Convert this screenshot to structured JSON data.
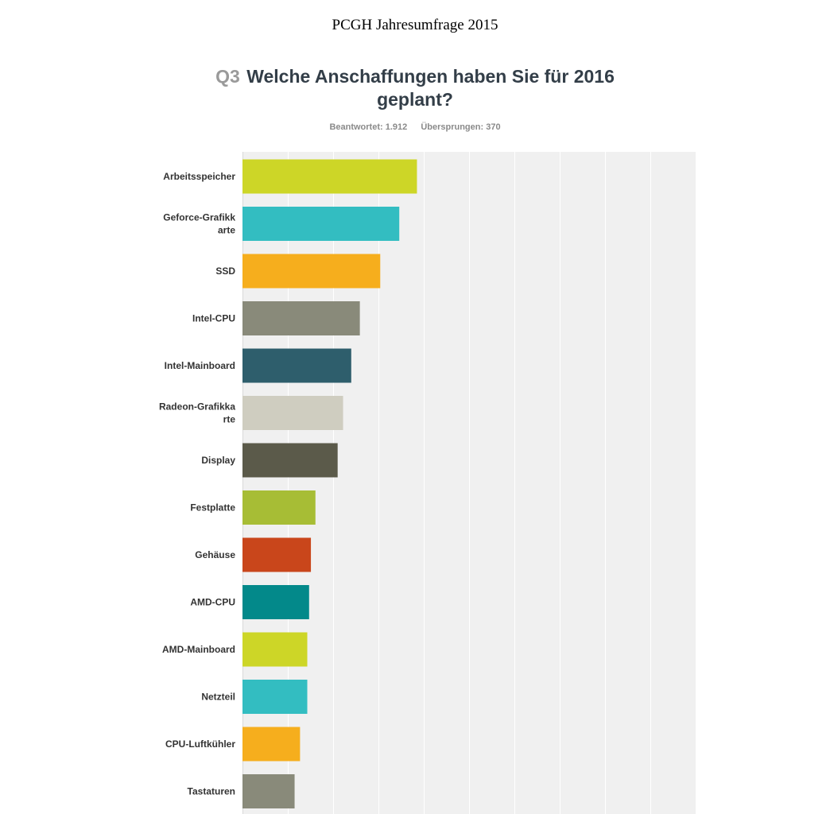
{
  "header": {
    "doc_title": "PCGH Jahresumfrage 2015",
    "question_number": "Q3",
    "question_text": "Welche Anschaffungen haben Sie für 2016 geplant?",
    "answered": "Beantwortet: 1.912",
    "skipped": "Übersprungen: 370"
  },
  "chart_data": {
    "type": "bar",
    "orientation": "horizontal",
    "title": "Welche Anschaffungen haben Sie für 2016 geplant?",
    "xlabel": "",
    "ylabel": "",
    "xlim": [
      0,
      100
    ],
    "grid": true,
    "categories": [
      [
        "Arbeitsspeicher"
      ],
      [
        "Geforce-Grafikk",
        "arte"
      ],
      [
        "SSD"
      ],
      [
        "Intel-CPU"
      ],
      [
        "Intel-Mainboard"
      ],
      [
        "Radeon-Grafikka",
        "rte"
      ],
      [
        "Display"
      ],
      [
        "Festplatte"
      ],
      [
        "Gehäuse"
      ],
      [
        "AMD-CPU"
      ],
      [
        "AMD-Mainboard"
      ],
      [
        "Netzteil"
      ],
      [
        "CPU-Luftkühler"
      ],
      [
        "Tastaturen"
      ]
    ],
    "values": [
      38.5,
      34.6,
      30.4,
      25.9,
      24.0,
      22.2,
      21.0,
      16.1,
      15.1,
      14.7,
      14.3,
      14.3,
      12.7,
      11.5
    ],
    "colors": [
      "#cdd627",
      "#33bdc1",
      "#f6ae1d",
      "#898a7a",
      "#2e5e6c",
      "#cfcdc0",
      "#5b5a4a",
      "#a7bd35",
      "#c9461b",
      "#03898a",
      "#cdd627",
      "#33bdc1",
      "#f6ae1d",
      "#898a7a"
    ],
    "plot_background": "#f0f0f0",
    "grid_color": "#ffffff"
  }
}
